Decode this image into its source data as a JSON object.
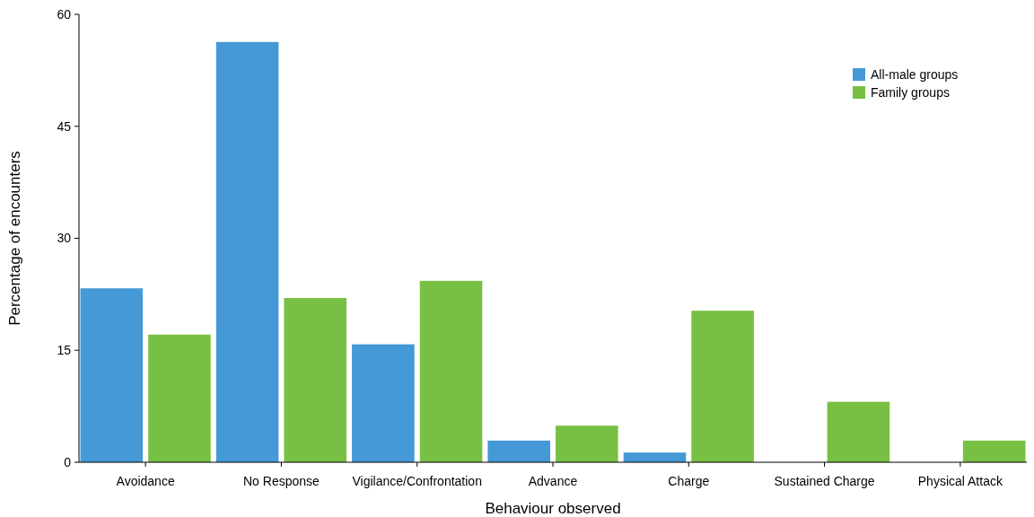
{
  "chart_data": {
    "type": "bar",
    "xlabel": "Behaviour observed",
    "ylabel": "Percentage of encounters",
    "categories": [
      "Avoidance",
      "No Response",
      "Vigilance/Confrontation",
      "Advance",
      "Charge",
      "Sustained Charge",
      "Physical Attack"
    ],
    "series": [
      {
        "name": "All-male groups",
        "color": "#4499d6",
        "values": [
          23.3,
          56.3,
          15.8,
          2.9,
          1.3,
          0,
          0
        ]
      },
      {
        "name": "Family groups",
        "color": "#78c043",
        "values": [
          17.1,
          22.0,
          24.3,
          4.9,
          20.3,
          8.1,
          2.9
        ]
      }
    ],
    "ylim": [
      0,
      60
    ],
    "yticks": [
      0,
      15,
      30,
      45,
      60
    ],
    "grid": false,
    "legend": "top right"
  }
}
